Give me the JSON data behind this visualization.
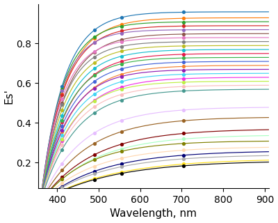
{
  "xlabel": "Wavelength, nm",
  "ylabel": "Es'",
  "xlim": [
    355,
    910
  ],
  "ylim": [
    0.07,
    1.0
  ],
  "marker_wavelengths": [
    412,
    490,
    555,
    705
  ],
  "xticks": [
    400,
    500,
    600,
    700,
    800,
    900
  ],
  "yticks": [
    0.2,
    0.4,
    0.6,
    0.8
  ],
  "colors": [
    "#1f77b4",
    "#ff7f0e",
    "#2ca02c",
    "#d62728",
    "#9467bd",
    "#8c564b",
    "#e377c2",
    "#7f7f7f",
    "#bcbd22",
    "#17becf",
    "#ff0000",
    "#00aa00",
    "#0000ff",
    "#ff00ff",
    "#00ffff",
    "#aa5500",
    "#5500aa",
    "#aa0055",
    "#00aa55",
    "#5555ff",
    "#ff5555",
    "#55ff55",
    "#5555aa",
    "#aa5555",
    "#55aaaa",
    "#ffaa00",
    "#00ffaa",
    "#aa00ff",
    "#ff55aa",
    "#aaaaaa"
  ],
  "curves": [
    {
      "asymp": 0.96,
      "rate": 0.018,
      "start": 360
    },
    {
      "asymp": 0.93,
      "rate": 0.017,
      "start": 360
    },
    {
      "asymp": 0.91,
      "rate": 0.019,
      "start": 360
    },
    {
      "asymp": 0.89,
      "rate": 0.018,
      "start": 360
    },
    {
      "asymp": 0.87,
      "rate": 0.02,
      "start": 360
    },
    {
      "asymp": 0.85,
      "rate": 0.017,
      "start": 360
    },
    {
      "asymp": 0.83,
      "rate": 0.019,
      "start": 360
    },
    {
      "asymp": 0.81,
      "rate": 0.018,
      "start": 360
    },
    {
      "asymp": 0.79,
      "rate": 0.017,
      "start": 360
    },
    {
      "asymp": 0.77,
      "rate": 0.016,
      "start": 360
    },
    {
      "asymp": 0.75,
      "rate": 0.015,
      "start": 360
    },
    {
      "asymp": 0.73,
      "rate": 0.016,
      "start": 360
    },
    {
      "asymp": 0.71,
      "rate": 0.015,
      "start": 360
    },
    {
      "asymp": 0.69,
      "rate": 0.014,
      "start": 360
    },
    {
      "asymp": 0.67,
      "rate": 0.015,
      "start": 360
    },
    {
      "asymp": 0.65,
      "rate": 0.014,
      "start": 360
    },
    {
      "asymp": 0.63,
      "rate": 0.013,
      "start": 360
    },
    {
      "asymp": 0.61,
      "rate": 0.014,
      "start": 360
    },
    {
      "asymp": 0.59,
      "rate": 0.013,
      "start": 360
    },
    {
      "asymp": 0.57,
      "rate": 0.012,
      "start": 360
    },
    {
      "asymp": 0.48,
      "rate": 0.01,
      "start": 360
    },
    {
      "asymp": 0.43,
      "rate": 0.009,
      "start": 360
    },
    {
      "asymp": 0.37,
      "rate": 0.008,
      "start": 360
    },
    {
      "asymp": 0.34,
      "rate": 0.008,
      "start": 360
    },
    {
      "asymp": 0.31,
      "rate": 0.009,
      "start": 360
    },
    {
      "asymp": 0.28,
      "rate": 0.008,
      "start": 360
    },
    {
      "asymp": 0.26,
      "rate": 0.007,
      "start": 360
    },
    {
      "asymp": 0.24,
      "rate": 0.007,
      "start": 360
    },
    {
      "asymp": 0.22,
      "rate": 0.006,
      "start": 360
    },
    {
      "asymp": 0.21,
      "rate": 0.006,
      "start": 360
    }
  ]
}
